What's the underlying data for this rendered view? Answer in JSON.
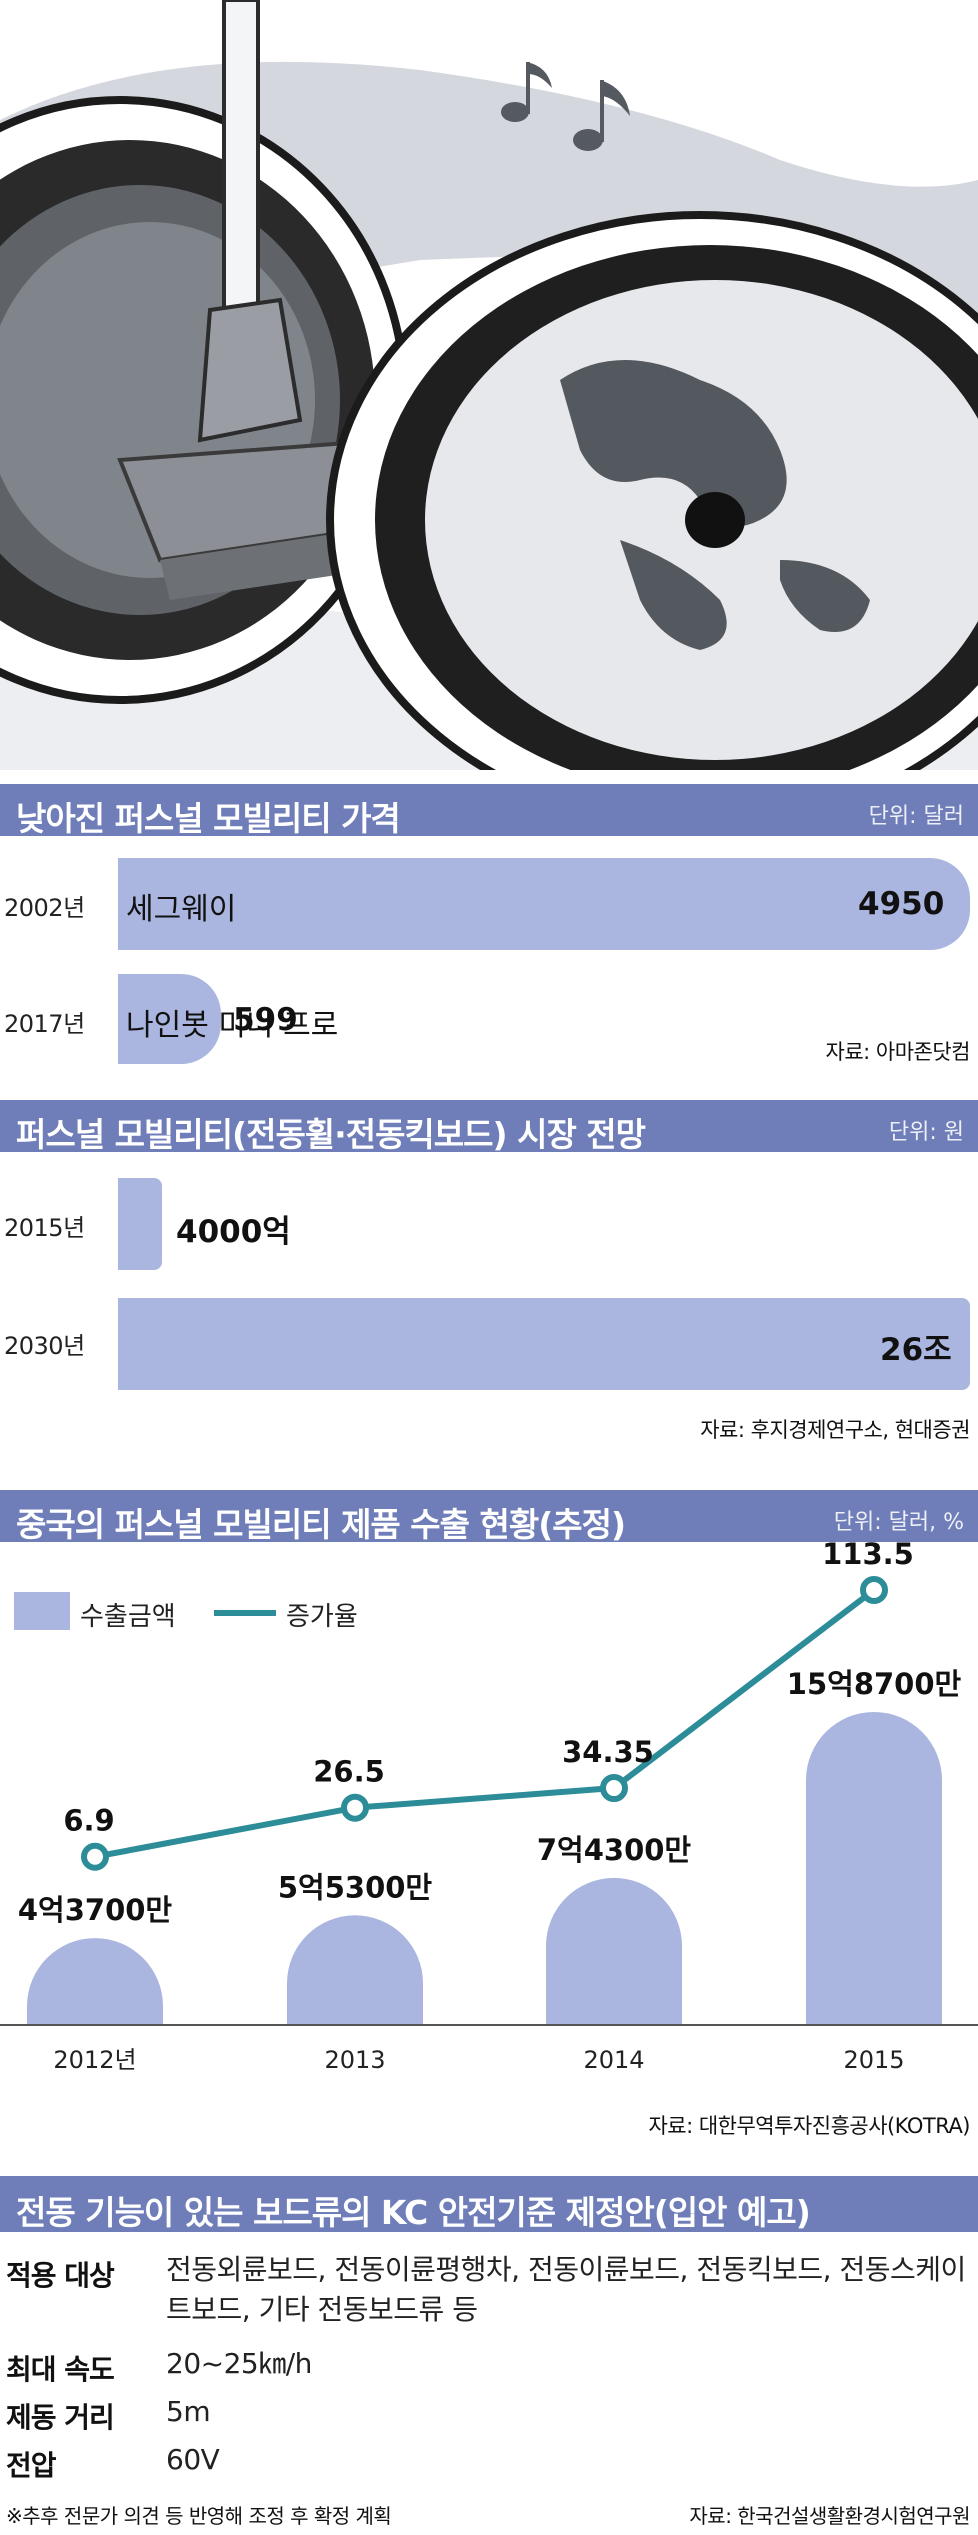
{
  "hero": {
    "illustration": "personal-mobility-wheels-with-globe-and-music-notes"
  },
  "price_section": {
    "title": "낮아진 퍼스널 모빌리티 가격",
    "unit": "단위: 달러",
    "source": "자료: 아마존닷컴",
    "rows": [
      {
        "year": "2002년",
        "name": "세그웨이",
        "value_label": "4950"
      },
      {
        "year": "2017년",
        "name": "나인봇 미니 프로",
        "value_label": "599"
      }
    ]
  },
  "market_section": {
    "title": "퍼스널 모빌리티(전동휠·전동킥보드) 시장 전망",
    "unit": "단위: 원",
    "source": "자료: 후지경제연구소, 현대증권",
    "rows": [
      {
        "year": "2015년",
        "value_label": "4000억"
      },
      {
        "year": "2030년",
        "value_label": "26조"
      }
    ]
  },
  "export_section": {
    "title": "중국의 퍼스널 모빌리티 제품 수출 현황(추정)",
    "unit": "단위: 달러, %",
    "source": "자료: 대한무역투자진흥공사(KOTRA)",
    "legend": {
      "bar": "수출금액",
      "line": "증가율"
    }
  },
  "chart_data": [
    {
      "type": "bar",
      "orientation": "horizontal",
      "title": "낮아진 퍼스널 모빌리티 가격",
      "unit": "단위: 달러",
      "categories": [
        "2002년",
        "2017년"
      ],
      "labels": [
        "세그웨이",
        "나인봇 미니 프로"
      ],
      "values": [
        4950,
        599
      ]
    },
    {
      "type": "bar",
      "orientation": "horizontal",
      "title": "퍼스널 모빌리티(전동휠·전동킥보드) 시장 전망",
      "unit": "단위: 원",
      "categories": [
        "2015년",
        "2030년"
      ],
      "values": [
        400000000000,
        26000000000000
      ],
      "value_labels": [
        "4000억",
        "26조"
      ]
    },
    {
      "type": "bar",
      "title": "중국의 퍼스널 모빌리티 제품 수출 현황(추정)",
      "unit": "단위: 달러, %",
      "categories": [
        "2012년",
        "2013",
        "2014",
        "2015"
      ],
      "series": [
        {
          "name": "수출금액",
          "type": "bar",
          "values": [
            437000000,
            553000000,
            743000000,
            1587000000
          ],
          "labels": [
            "4억3700만",
            "5억5300만",
            "7억4300만",
            "15억8700만"
          ]
        },
        {
          "name": "증가율",
          "type": "line",
          "values": [
            6.9,
            26.5,
            34.35,
            113.5
          ],
          "labels": [
            "6.9",
            "26.5",
            "34.35",
            "113.5"
          ]
        }
      ],
      "line_color": "#2c8c98",
      "bar_color": "#abb6e0",
      "grid": false,
      "legend": "top-left"
    }
  ],
  "kc_section": {
    "title": "전동 기능이 있는 보드류의 KC 안전기준 제정안(입안 예고)",
    "rows": [
      {
        "key": "적용 대상",
        "value": "전동외륜보드, 전동이륜평행차, 전동이륜보드, 전동킥보드, 전동스케이트보드, 기타 전동보드류 등"
      },
      {
        "key": "최대 속도",
        "value": "20~25㎞/h"
      },
      {
        "key": "제동 거리",
        "value": "5m"
      },
      {
        "key": "전압",
        "value": "60V"
      }
    ],
    "note": "※추후 전문가 의견 등 반영해 조정 후 확정 계획",
    "source": "자료: 한국건설생활환경시험연구원"
  },
  "colors": {
    "header": "#6f7eb8",
    "bar": "#abb6e0",
    "line": "#2c8c98"
  }
}
